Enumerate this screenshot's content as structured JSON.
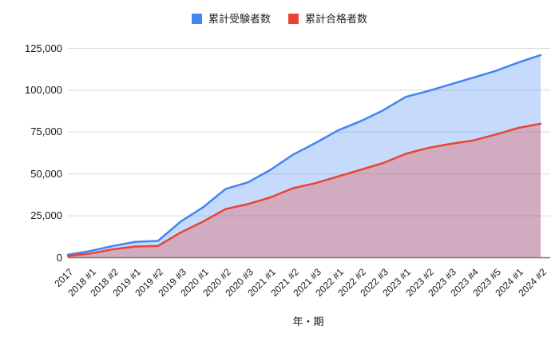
{
  "chart_data": {
    "type": "area",
    "title": "",
    "xlabel": "年・期",
    "ylabel": "",
    "legend_position": "top",
    "grid": true,
    "background": "#ffffff",
    "gridline_color": "#d9d9d9",
    "baseline_color": "#757575",
    "categories": [
      "2017",
      "2018 #1",
      "2018 #2",
      "2019 #1",
      "2019 #2",
      "2019 #3",
      "2020 #1",
      "2020 #2",
      "2020 #3",
      "2021 #1",
      "2021 #2",
      "2021 #3",
      "2022 #1",
      "2022 #2",
      "2022 #3",
      "2023 #1",
      "2023 #2",
      "2023 #3",
      "2023 #4",
      "2023 #5",
      "2024 #1",
      "2024 #2"
    ],
    "series": [
      {
        "name": "累計受験者数",
        "color": "#4285f4",
        "fill_opacity": 0.3,
        "values": [
          1800,
          4000,
          7000,
          9500,
          10000,
          21500,
          30000,
          41000,
          45000,
          52500,
          61500,
          68500,
          76000,
          81500,
          88000,
          96000,
          99500,
          103500,
          107500,
          111500,
          116500,
          121000
        ]
      },
      {
        "name": "累計合格者数",
        "color": "#ea4335",
        "fill_opacity": 0.3,
        "values": [
          1000,
          2500,
          5000,
          6700,
          7000,
          15000,
          21500,
          29000,
          32000,
          36000,
          41500,
          44500,
          48500,
          52500,
          56500,
          62000,
          65500,
          68000,
          70000,
          73500,
          77500,
          80000
        ]
      }
    ],
    "ylim": [
      0,
      125000
    ],
    "yticks": [
      0,
      25000,
      50000,
      75000,
      100000,
      125000
    ],
    "ytick_labels": [
      "0",
      "25,000",
      "50,000",
      "75,000",
      "100,000",
      "125,000"
    ]
  }
}
